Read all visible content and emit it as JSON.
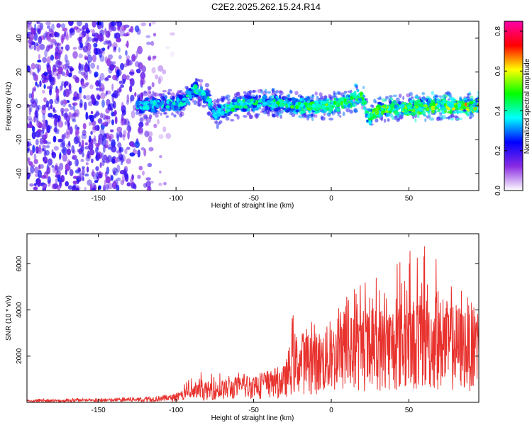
{
  "page": {
    "title": "C2E2.2025.262.15.24.R14"
  },
  "chart_data": [
    {
      "id": "spectrogram",
      "type": "heatmap",
      "title": "C2E2.2025.262.15.24.R14",
      "xlabel": "Height of straight line (km)",
      "ylabel": "Frequency (Hz)",
      "xlim": [
        -196,
        95
      ],
      "ylim": [
        -50,
        50
      ],
      "xticks": [
        -150,
        -100,
        -50,
        0,
        50
      ],
      "yticks": [
        -40,
        -20,
        0,
        20,
        40
      ],
      "colorbar": {
        "label": "Normalized spectral amplitude",
        "range": [
          0,
          0.85
        ],
        "ticks": [
          "0.0",
          "0.2",
          "0.4",
          "0.6",
          "0.8"
        ],
        "colors": [
          "#ffffff",
          "#8a2be2",
          "#0000ff",
          "#00ffff",
          "#00ff00",
          "#ffff00",
          "#ff0000",
          "#ff00aa"
        ]
      },
      "ridge_center_hz": {
        "x": [
          -125,
          -110,
          -95,
          -88,
          -80,
          -75,
          -60,
          -40,
          -20,
          0,
          10,
          20,
          24,
          30,
          50,
          70,
          94
        ],
        "y": [
          0,
          1,
          2,
          10,
          5,
          -5,
          1,
          2,
          0,
          0,
          3,
          6,
          -8,
          -2,
          -1,
          0,
          0
        ]
      }
    },
    {
      "id": "snr",
      "type": "line",
      "xlabel": "Height of straight line (km)",
      "ylabel": "SNR (10 * v/v)",
      "xlim": [
        -196,
        95
      ],
      "ylim": [
        0,
        7300
      ],
      "xticks": [
        -150,
        -100,
        -50,
        0,
        50
      ],
      "yticks": [
        2000,
        4000,
        6000
      ],
      "color": "#e8322e",
      "envelope": {
        "x": [
          -196,
          -150,
          -120,
          -100,
          -90,
          -80,
          -70,
          -50,
          -30,
          -25,
          -10,
          0,
          20,
          40,
          60,
          80,
          95
        ],
        "mean": [
          60,
          80,
          120,
          200,
          400,
          500,
          550,
          700,
          900,
          1700,
          1700,
          1900,
          2200,
          2400,
          2600,
          2400,
          2400
        ],
        "peak": [
          150,
          180,
          250,
          400,
          1200,
          1400,
          1300,
          1300,
          1400,
          3800,
          3800,
          4000,
          5600,
          6200,
          7000,
          5200,
          4000
        ]
      }
    }
  ]
}
